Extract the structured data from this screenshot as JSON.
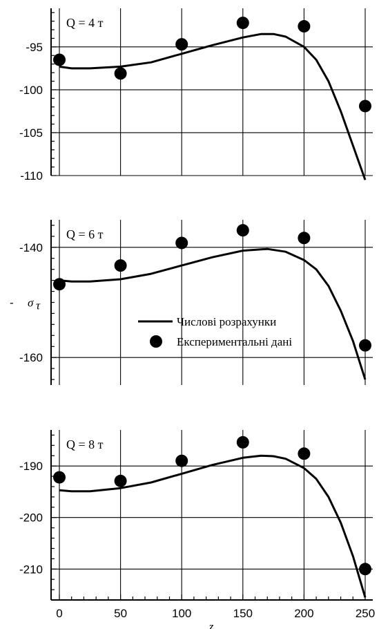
{
  "chart_data": [
    {
      "type": "scatter",
      "label": "Q = 4 т",
      "xlim": [
        0,
        250
      ],
      "ylim": [
        -110,
        -90.5
      ],
      "yticks": [
        -95,
        -100,
        -105,
        -110
      ],
      "grid": true,
      "series": [
        {
          "kind": "line",
          "x": [
            0,
            10,
            25,
            50,
            75,
            100,
            125,
            150,
            165,
            175,
            185,
            200,
            210,
            220,
            230,
            240,
            250
          ],
          "y": [
            -97.3,
            -97.5,
            -97.5,
            -97.3,
            -96.8,
            -95.8,
            -94.8,
            -93.9,
            -93.5,
            -93.5,
            -93.8,
            -95.0,
            -96.5,
            -99.0,
            -102.5,
            -106.5,
            -110.5
          ]
        },
        {
          "kind": "points",
          "x": [
            0,
            50,
            100,
            150,
            200,
            250
          ],
          "y": [
            -96.5,
            -98.1,
            -94.7,
            -92.2,
            -92.6,
            -101.9
          ]
        }
      ]
    },
    {
      "type": "scatter",
      "label": "Q = 6 т",
      "xlim": [
        0,
        250
      ],
      "ylim": [
        -165,
        -135
      ],
      "yticks": [
        -140,
        -160
      ],
      "ytick_texts": [
        "-140",
        "-",
        "-160"
      ],
      "ylabel": "σ",
      "ylabel_sub": "τ",
      "grid": true,
      "legend": {
        "position": "center-right",
        "line_label": "Числові розрахунки",
        "points_label": "Експериментальні дані"
      },
      "series": [
        {
          "kind": "line",
          "x": [
            0,
            10,
            25,
            50,
            75,
            100,
            125,
            150,
            170,
            185,
            200,
            210,
            220,
            230,
            240,
            250
          ],
          "y": [
            -146.0,
            -146.2,
            -146.2,
            -145.8,
            -144.8,
            -143.3,
            -141.8,
            -140.6,
            -140.3,
            -140.8,
            -142.3,
            -144.0,
            -147.0,
            -151.5,
            -157.0,
            -164.0
          ]
        },
        {
          "kind": "points",
          "x": [
            0,
            50,
            100,
            150,
            200,
            250
          ],
          "y": [
            -146.7,
            -143.3,
            -139.2,
            -136.9,
            -138.3,
            -157.8
          ]
        }
      ]
    },
    {
      "type": "scatter",
      "label": "Q = 8 т",
      "xlim": [
        0,
        250
      ],
      "ylim": [
        -216,
        -183
      ],
      "xticks": [
        0,
        50,
        100,
        150,
        200,
        250
      ],
      "yticks": [
        -190,
        -200,
        -210
      ],
      "xlabel": "z",
      "grid": true,
      "series": [
        {
          "kind": "line",
          "x": [
            0,
            10,
            25,
            50,
            75,
            100,
            125,
            150,
            165,
            175,
            185,
            200,
            210,
            220,
            230,
            240,
            250
          ],
          "y": [
            -194.7,
            -194.9,
            -194.9,
            -194.3,
            -193.2,
            -191.5,
            -189.8,
            -188.4,
            -188.0,
            -188.1,
            -188.6,
            -190.4,
            -192.5,
            -196.0,
            -201.0,
            -207.5,
            -215.5
          ]
        },
        {
          "kind": "points",
          "x": [
            0,
            50,
            100,
            150,
            200,
            250
          ],
          "y": [
            -192.2,
            -192.9,
            -189.0,
            -185.4,
            -187.6,
            -210.0
          ]
        }
      ]
    }
  ]
}
